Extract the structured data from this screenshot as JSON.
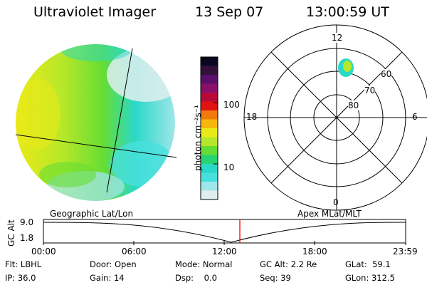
{
  "header": {
    "instrument": "Ultraviolet Imager",
    "date": "13 Sep 07",
    "time": "13:00:59 UT"
  },
  "colorbar": {
    "unit_label": "photon cm⁻²s⁻¹",
    "ticks": [
      "100",
      "10"
    ],
    "colors": [
      "#0a0820",
      "#33103a",
      "#5a0f6a",
      "#8a0f6a",
      "#b80a3a",
      "#e01212",
      "#f27a0c",
      "#f7b60c",
      "#eaea18",
      "#b5e82a",
      "#66dd33",
      "#27d472",
      "#2ad8c8",
      "#48e0dc",
      "#9fe6ea",
      "#dfeeee"
    ]
  },
  "polar_plot": {
    "mlt_labels": {
      "top": "12",
      "left": "18",
      "right": "6",
      "bottom": "0"
    },
    "lat_labels": [
      "60",
      "70",
      "80"
    ]
  },
  "timeline": {
    "left_label": "Geographic Lat/Lon",
    "right_label": "Apex MLat/MLT",
    "y_axis_label": "GC Alt",
    "y_ticks": [
      "9.0",
      "1.8"
    ],
    "x_ticks": [
      "00:00",
      "06:00",
      "12:00",
      "18:00",
      "23:59"
    ],
    "current_time_marker": "13:00",
    "marker_color": "#ff0000"
  },
  "status": {
    "row1": [
      {
        "label": "Flt:",
        "value": "LBHL"
      },
      {
        "label": "Door:",
        "value": "Open"
      },
      {
        "label": "Mode:",
        "value": "Normal"
      },
      {
        "label": "GC Alt:",
        "value": "2.2 Re"
      },
      {
        "label": "GLat:",
        "value": "59.1"
      }
    ],
    "row2": [
      {
        "label": "IP:",
        "value": "36.0"
      },
      {
        "label": "Gain:",
        "value": "14"
      },
      {
        "label": "Dsp:",
        "value": "0.0"
      },
      {
        "label": "Seq:",
        "value": "39"
      },
      {
        "label": "GLon:",
        "value": "312.5"
      }
    ]
  }
}
